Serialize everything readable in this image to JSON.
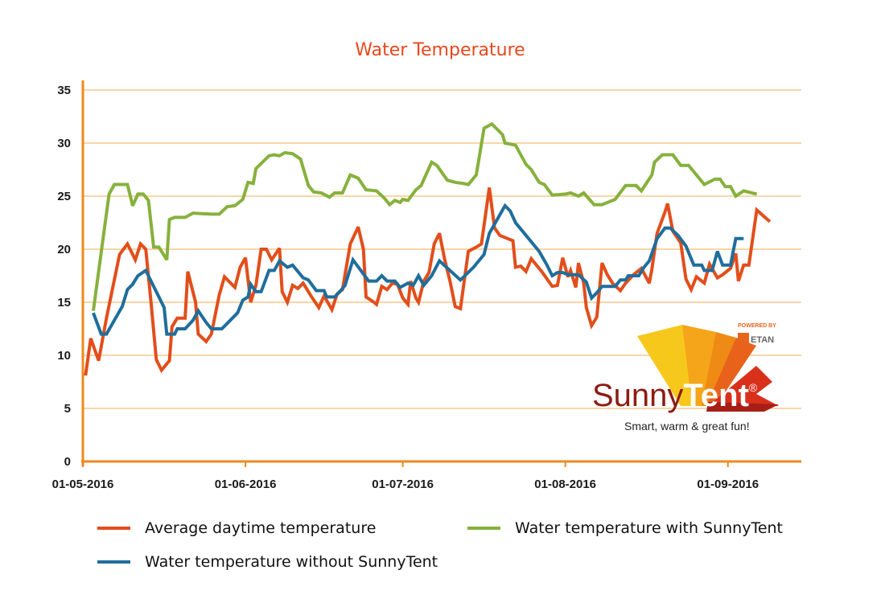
{
  "chart_data": {
    "type": "line",
    "title": "Water Temperature",
    "xlabel": "",
    "ylabel": "",
    "ylim": [
      0,
      35
    ],
    "yticks": [
      0,
      5,
      10,
      15,
      20,
      25,
      30,
      35
    ],
    "x_unit": "days since 01-05-2016",
    "xlim": [
      0,
      137
    ],
    "xticks": [
      {
        "label": "01-05-2016",
        "day": 0
      },
      {
        "label": "01-06-2016",
        "day": 31
      },
      {
        "label": "01-07-2016",
        "day": 61
      },
      {
        "label": "01-08-2016",
        "day": 92
      },
      {
        "label": "01-09-2016",
        "day": 123
      }
    ],
    "grid": true,
    "legend_position": "bottom",
    "series": [
      {
        "name": "Average daytime temperature",
        "color": "#e24e1b",
        "points": [
          [
            0.5,
            8.1
          ],
          [
            1.5,
            11.6
          ],
          [
            3,
            9.5
          ],
          [
            4.5,
            13.5
          ],
          [
            7,
            19.5
          ],
          [
            8.5,
            20.5
          ],
          [
            10,
            19
          ],
          [
            11,
            20.5
          ],
          [
            12,
            20
          ],
          [
            13,
            15
          ],
          [
            14,
            9.6
          ],
          [
            15,
            8.6
          ],
          [
            16.5,
            9.5
          ],
          [
            17,
            12.7
          ],
          [
            18,
            13.5
          ],
          [
            19.5,
            13.5
          ],
          [
            20,
            17.9
          ],
          [
            21.5,
            15
          ],
          [
            22,
            12
          ],
          [
            23.5,
            11.3
          ],
          [
            24.5,
            12
          ],
          [
            26,
            15.7
          ],
          [
            27,
            17.4
          ],
          [
            29,
            16.4
          ],
          [
            30,
            18.3
          ],
          [
            31,
            19.2
          ],
          [
            32,
            15
          ],
          [
            33,
            16.6
          ],
          [
            34,
            20
          ],
          [
            35,
            20
          ],
          [
            36,
            19
          ],
          [
            37.5,
            20.1
          ],
          [
            38,
            16
          ],
          [
            39,
            15
          ],
          [
            40,
            16.6
          ],
          [
            41,
            16.3
          ],
          [
            42,
            16.8
          ],
          [
            43.5,
            15.6
          ],
          [
            45,
            14.5
          ],
          [
            46,
            15.6
          ],
          [
            47.5,
            14.3
          ],
          [
            48.5,
            15.8
          ],
          [
            49.5,
            16.2
          ],
          [
            51,
            20.5
          ],
          [
            52.5,
            22.1
          ],
          [
            53.5,
            20
          ],
          [
            54,
            15.5
          ],
          [
            55.5,
            15
          ],
          [
            56,
            14.8
          ],
          [
            57,
            16.5
          ],
          [
            58,
            16.2
          ],
          [
            59,
            16.8
          ],
          [
            60,
            16.7
          ],
          [
            61,
            15.4
          ],
          [
            62,
            14.8
          ],
          [
            62.5,
            17
          ],
          [
            63.5,
            15.4
          ],
          [
            64,
            15
          ],
          [
            65,
            17
          ],
          [
            66,
            17.8
          ],
          [
            67,
            20.5
          ],
          [
            68,
            21.5
          ],
          [
            69,
            19
          ],
          [
            70,
            17
          ],
          [
            71,
            14.6
          ],
          [
            72,
            14.4
          ],
          [
            73.5,
            19.8
          ],
          [
            75,
            20.2
          ],
          [
            76,
            20.5
          ],
          [
            77.5,
            25.8
          ],
          [
            78.5,
            22
          ],
          [
            79.5,
            21.3
          ],
          [
            81,
            21
          ],
          [
            82,
            20.8
          ],
          [
            82.5,
            18.3
          ],
          [
            83.5,
            18.4
          ],
          [
            84.5,
            17.9
          ],
          [
            85.5,
            19.1
          ],
          [
            87.5,
            17.9
          ],
          [
            89.5,
            16.5
          ],
          [
            90.5,
            16.6
          ],
          [
            91.5,
            19.2
          ],
          [
            92.5,
            17.4
          ],
          [
            93,
            18
          ],
          [
            94,
            16.4
          ],
          [
            94.5,
            18.7
          ],
          [
            95.5,
            16.8
          ],
          [
            96,
            14.5
          ],
          [
            97,
            12.8
          ],
          [
            98,
            13.6
          ],
          [
            99,
            18.7
          ],
          [
            100,
            17.6
          ],
          [
            101,
            16.8
          ],
          [
            102.5,
            16.1
          ],
          [
            103.5,
            16.8
          ],
          [
            105,
            17.6
          ],
          [
            106.5,
            18.2
          ],
          [
            108,
            16.8
          ],
          [
            108.5,
            18.1
          ],
          [
            109.5,
            21.5
          ],
          [
            111,
            23.5
          ],
          [
            111.5,
            24.3
          ],
          [
            112.5,
            21.7
          ],
          [
            114,
            20.6
          ],
          [
            115,
            17.2
          ],
          [
            116,
            16.2
          ],
          [
            117,
            17.4
          ],
          [
            118.5,
            16.8
          ],
          [
            119.5,
            18.6
          ],
          [
            121,
            17.3
          ],
          [
            122,
            17.6
          ],
          [
            123.5,
            18.2
          ],
          [
            124.5,
            19.6
          ],
          [
            125,
            17
          ],
          [
            126,
            18.5
          ],
          [
            127,
            18.5
          ],
          [
            128.5,
            23.7
          ],
          [
            131,
            22.6
          ]
        ]
      },
      {
        "name": "Water temperature with SunnyTent",
        "color": "#86b13c",
        "points": [
          [
            2,
            14.2
          ],
          [
            5,
            25.2
          ],
          [
            6,
            26.1
          ],
          [
            8.5,
            26.1
          ],
          [
            9.5,
            24.1
          ],
          [
            10.5,
            25.2
          ],
          [
            11.5,
            25.2
          ],
          [
            12.5,
            24.6
          ],
          [
            13.5,
            20.2
          ],
          [
            14.5,
            20.2
          ],
          [
            16,
            19
          ],
          [
            16.5,
            22.8
          ],
          [
            17.5,
            23
          ],
          [
            19.5,
            23
          ],
          [
            21,
            23.4
          ],
          [
            24.5,
            23.3
          ],
          [
            26,
            23.3
          ],
          [
            27.5,
            24
          ],
          [
            29,
            24.1
          ],
          [
            30.5,
            24.7
          ],
          [
            31.5,
            26.3
          ],
          [
            32.5,
            26.2
          ],
          [
            33,
            27.6
          ],
          [
            35.5,
            28.8
          ],
          [
            36.5,
            28.9
          ],
          [
            37.5,
            28.8
          ],
          [
            38.5,
            29.1
          ],
          [
            40,
            29
          ],
          [
            41.5,
            28.5
          ],
          [
            43,
            26
          ],
          [
            44,
            25.4
          ],
          [
            45.5,
            25.3
          ],
          [
            47,
            24.9
          ],
          [
            48,
            25.3
          ],
          [
            49.5,
            25.3
          ],
          [
            51,
            27
          ],
          [
            52.5,
            26.7
          ],
          [
            54,
            25.6
          ],
          [
            56,
            25.5
          ],
          [
            57.5,
            24.8
          ],
          [
            58.5,
            24.2
          ],
          [
            59.5,
            24.6
          ],
          [
            60.5,
            24.4
          ],
          [
            61,
            24.7
          ],
          [
            62,
            24.6
          ],
          [
            63.5,
            25.6
          ],
          [
            64.5,
            26
          ],
          [
            66.5,
            28.2
          ],
          [
            67.5,
            27.9
          ],
          [
            69.5,
            26.5
          ],
          [
            71,
            26.3
          ],
          [
            72.5,
            26.2
          ],
          [
            73.5,
            26.1
          ],
          [
            75,
            27
          ],
          [
            75.5,
            28.4
          ],
          [
            76.5,
            31.4
          ],
          [
            78,
            31.8
          ],
          [
            80,
            30.8
          ],
          [
            80.5,
            30
          ],
          [
            82.5,
            29.8
          ],
          [
            84.5,
            28
          ],
          [
            85.5,
            27.5
          ],
          [
            87,
            26.3
          ],
          [
            88,
            26.1
          ],
          [
            89.5,
            25.1
          ],
          [
            92,
            25.2
          ],
          [
            93,
            25.3
          ],
          [
            94.5,
            25
          ],
          [
            95.5,
            25.3
          ],
          [
            97.5,
            24.2
          ],
          [
            99,
            24.2
          ],
          [
            101.5,
            24.7
          ],
          [
            103.5,
            26
          ],
          [
            105.5,
            26
          ],
          [
            106.5,
            25.5
          ],
          [
            108.5,
            27
          ],
          [
            109,
            28.2
          ],
          [
            110.5,
            28.9
          ],
          [
            112.5,
            28.9
          ],
          [
            114,
            27.9
          ],
          [
            115.5,
            27.9
          ],
          [
            118.5,
            26.1
          ],
          [
            120.5,
            26.6
          ],
          [
            121.5,
            26.6
          ],
          [
            122.5,
            25.9
          ],
          [
            123.5,
            25.9
          ],
          [
            124.5,
            25
          ],
          [
            126,
            25.5
          ],
          [
            128.5,
            25.2
          ]
        ]
      },
      {
        "name": "Water temperature without SunnyTent",
        "color": "#1f6e9c",
        "points": [
          [
            2,
            14
          ],
          [
            3.5,
            12
          ],
          [
            4.5,
            12
          ],
          [
            6,
            13.3
          ],
          [
            7.5,
            14.6
          ],
          [
            8.5,
            16.2
          ],
          [
            9.5,
            16.7
          ],
          [
            10.5,
            17.5
          ],
          [
            12,
            18
          ],
          [
            13,
            17
          ],
          [
            14.5,
            15.5
          ],
          [
            15.5,
            14.5
          ],
          [
            16,
            12
          ],
          [
            17.5,
            12
          ],
          [
            18,
            12.5
          ],
          [
            19.5,
            12.5
          ],
          [
            21,
            13.3
          ],
          [
            22,
            14.2
          ],
          [
            23.5,
            13.1
          ],
          [
            24.5,
            12.5
          ],
          [
            26.5,
            12.5
          ],
          [
            27.5,
            13
          ],
          [
            29.5,
            14
          ],
          [
            30.5,
            15.2
          ],
          [
            31.5,
            15.5
          ],
          [
            32,
            16.7
          ],
          [
            33,
            16
          ],
          [
            34,
            16
          ],
          [
            35.5,
            18
          ],
          [
            36.5,
            18
          ],
          [
            37.5,
            18.9
          ],
          [
            39,
            18.3
          ],
          [
            40,
            18.5
          ],
          [
            42,
            17.3
          ],
          [
            43,
            17.1
          ],
          [
            44.5,
            16.1
          ],
          [
            46,
            16.1
          ],
          [
            46.5,
            15.5
          ],
          [
            48,
            15.5
          ],
          [
            49,
            16
          ],
          [
            50,
            16.6
          ],
          [
            51.5,
            19
          ],
          [
            53,
            18
          ],
          [
            54.5,
            17
          ],
          [
            56,
            17
          ],
          [
            57,
            17.5
          ],
          [
            58,
            17
          ],
          [
            59.5,
            17
          ],
          [
            60.5,
            16.4
          ],
          [
            62,
            16.8
          ],
          [
            63,
            16.6
          ],
          [
            64,
            17.5
          ],
          [
            65,
            16.6
          ],
          [
            66.5,
            17.5
          ],
          [
            68,
            18.9
          ],
          [
            72,
            17.1
          ],
          [
            74.5,
            18.3
          ],
          [
            76.5,
            19.5
          ],
          [
            77.5,
            21.5
          ],
          [
            80.5,
            24.1
          ],
          [
            81.5,
            23.6
          ],
          [
            82.5,
            22.5
          ],
          [
            85,
            21
          ],
          [
            87,
            19.8
          ],
          [
            88.5,
            18.5
          ],
          [
            89.5,
            17.5
          ],
          [
            90.5,
            17.8
          ],
          [
            91.5,
            17.8
          ],
          [
            92.5,
            17.6
          ],
          [
            93.5,
            17.6
          ],
          [
            94.5,
            17.6
          ],
          [
            96,
            16.9
          ],
          [
            97,
            15.4
          ],
          [
            98,
            15.9
          ],
          [
            99,
            16.5
          ],
          [
            100.5,
            16.5
          ],
          [
            101.5,
            16.5
          ],
          [
            102.5,
            17.1
          ],
          [
            103.5,
            17.1
          ],
          [
            104,
            17.5
          ],
          [
            106,
            17.5
          ],
          [
            107,
            18.3
          ],
          [
            108,
            18.9
          ],
          [
            109.5,
            21
          ],
          [
            111,
            22
          ],
          [
            112,
            22
          ],
          [
            113.5,
            21.3
          ],
          [
            115,
            20.3
          ],
          [
            116.5,
            18.5
          ],
          [
            118,
            18.5
          ],
          [
            118.5,
            18
          ],
          [
            120,
            18
          ],
          [
            121,
            19.8
          ],
          [
            122,
            18.5
          ],
          [
            123.5,
            18.5
          ],
          [
            124.5,
            21
          ],
          [
            126,
            21
          ]
        ]
      }
    ]
  },
  "logo": {
    "brand_part1": "Sunny",
    "brand_part2": "Tent",
    "registered": "®",
    "tagline": "Smart, warm & great fun!",
    "powered_by": "POWERED BY",
    "partner": "ETAN"
  }
}
